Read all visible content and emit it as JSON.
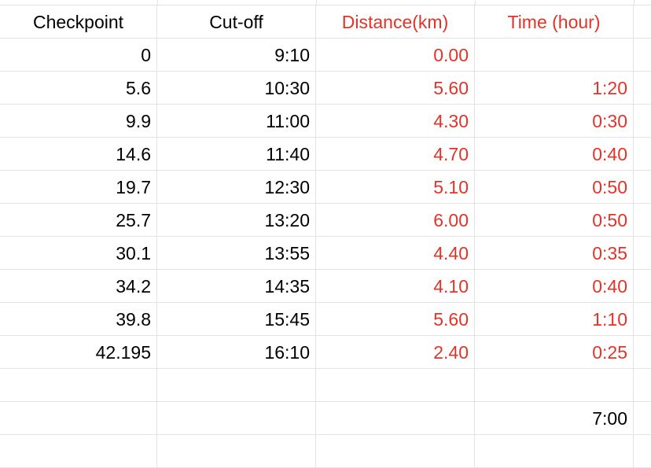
{
  "headers": {
    "checkpoint": "Checkpoint",
    "cutoff": "Cut-off",
    "distance": "Distance(km)",
    "time": "Time (hour)"
  },
  "rows": [
    {
      "checkpoint": "0",
      "cutoff": "9:10",
      "distance": "0.00",
      "time": ""
    },
    {
      "checkpoint": "5.6",
      "cutoff": "10:30",
      "distance": "5.60",
      "time": "1:20"
    },
    {
      "checkpoint": "9.9",
      "cutoff": "11:00",
      "distance": "4.30",
      "time": "0:30"
    },
    {
      "checkpoint": "14.6",
      "cutoff": "11:40",
      "distance": "4.70",
      "time": "0:40"
    },
    {
      "checkpoint": "19.7",
      "cutoff": "12:30",
      "distance": "5.10",
      "time": "0:50"
    },
    {
      "checkpoint": "25.7",
      "cutoff": "13:20",
      "distance": "6.00",
      "time": "0:50"
    },
    {
      "checkpoint": "30.1",
      "cutoff": "13:55",
      "distance": "4.40",
      "time": "0:35"
    },
    {
      "checkpoint": "34.2",
      "cutoff": "14:35",
      "distance": "4.10",
      "time": "0:40"
    },
    {
      "checkpoint": "39.8",
      "cutoff": "15:45",
      "distance": "5.60",
      "time": "1:10"
    },
    {
      "checkpoint": "42.195",
      "cutoff": "16:10",
      "distance": "2.40",
      "time": "0:25"
    },
    {
      "checkpoint": "",
      "cutoff": "",
      "distance": "",
      "time": ""
    },
    {
      "checkpoint": "",
      "cutoff": "",
      "distance": "",
      "time": "7:00"
    },
    {
      "checkpoint": "",
      "cutoff": "",
      "distance": "",
      "time": ""
    }
  ],
  "colors": {
    "text": "#000000",
    "accent_red": "#e0342a",
    "gridline": "#e2e3e3"
  }
}
